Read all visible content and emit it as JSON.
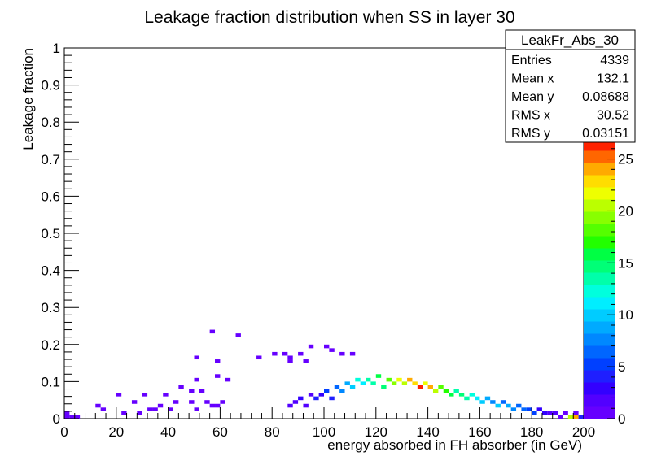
{
  "chart_data": {
    "type": "heatmap",
    "title": "Leakage fraction distribution when SS in layer 30",
    "xlabel": "energy absorbed in FH absorber (in GeV)",
    "ylabel": "Leakage fraction",
    "xlim": [
      0,
      200
    ],
    "ylim": [
      0,
      1
    ],
    "zlim": [
      0,
      27
    ],
    "x_ticks": [
      "0",
      "20",
      "40",
      "60",
      "80",
      "100",
      "120",
      "140",
      "160",
      "180",
      "200"
    ],
    "y_ticks": [
      "0",
      "0.1",
      "0.2",
      "0.3",
      "0.4",
      "0.5",
      "0.6",
      "0.7",
      "0.8",
      "0.9",
      "1"
    ],
    "z_ticks": [
      "0",
      "5",
      "10",
      "15",
      "20",
      "25"
    ],
    "bin_width_x": 2,
    "bin_width_y": 0.01,
    "stats_box": {
      "name": "LeakFr_Abs_30",
      "rows": [
        {
          "label": "Entries",
          "value": "4339"
        },
        {
          "label": "Mean x",
          "value": "132.1"
        },
        {
          "label": "Mean y",
          "value": "0.08688"
        },
        {
          "label": "RMS x",
          "value": "30.52"
        },
        {
          "label": "RMS y",
          "value": "0.03151"
        }
      ]
    },
    "palette": [
      "#6600ff",
      "#5200ff",
      "#3300ff",
      "#1f1fff",
      "#0040ff",
      "#0066ff",
      "#0088ff",
      "#00aaff",
      "#00ccff",
      "#00eeff",
      "#00ffdd",
      "#00ffaa",
      "#00ff77",
      "#00ff44",
      "#22ff00",
      "#55ff00",
      "#88ff00",
      "#bbff00",
      "#eeff00",
      "#ffdd00",
      "#ffaa00",
      "#ff6600",
      "#ff2200"
    ],
    "bins": [
      [
        1,
        0.005,
        1
      ],
      [
        3,
        0.005,
        1
      ],
      [
        5,
        0.005,
        1
      ],
      [
        1,
        0.015,
        1
      ],
      [
        23,
        0.015,
        1
      ],
      [
        29,
        0.015,
        1
      ],
      [
        15,
        0.025,
        1
      ],
      [
        33,
        0.025,
        1
      ],
      [
        35,
        0.025,
        1
      ],
      [
        41,
        0.025,
        1
      ],
      [
        51,
        0.025,
        1
      ],
      [
        13,
        0.035,
        1
      ],
      [
        37,
        0.035,
        1
      ],
      [
        57,
        0.035,
        1
      ],
      [
        59,
        0.035,
        1
      ],
      [
        27,
        0.045,
        1
      ],
      [
        43,
        0.045,
        1
      ],
      [
        49,
        0.045,
        1
      ],
      [
        55,
        0.045,
        1
      ],
      [
        61,
        0.045,
        1
      ],
      [
        21,
        0.065,
        1
      ],
      [
        31,
        0.065,
        1
      ],
      [
        39,
        0.065,
        1
      ],
      [
        49,
        0.075,
        1
      ],
      [
        45,
        0.085,
        1
      ],
      [
        53,
        0.075,
        1
      ],
      [
        51,
        0.105,
        1
      ],
      [
        59,
        0.115,
        1
      ],
      [
        63,
        0.105,
        1
      ],
      [
        51,
        0.165,
        1
      ],
      [
        59,
        0.155,
        1
      ],
      [
        75,
        0.165,
        1
      ],
      [
        81,
        0.175,
        1
      ],
      [
        85,
        0.175,
        1
      ],
      [
        87,
        0.165,
        1
      ],
      [
        91,
        0.175,
        1
      ],
      [
        95,
        0.195,
        1
      ],
      [
        101,
        0.195,
        1
      ],
      [
        103,
        0.185,
        1
      ],
      [
        93,
        0.155,
        1
      ],
      [
        87,
        0.155,
        1
      ],
      [
        57,
        0.235,
        1
      ],
      [
        67,
        0.225,
        1
      ],
      [
        107,
        0.175,
        1
      ],
      [
        111,
        0.175,
        1
      ],
      [
        185,
        0.015,
        3
      ],
      [
        187,
        0.015,
        2
      ],
      [
        189,
        0.015,
        2
      ],
      [
        191,
        0.005,
        1
      ],
      [
        193,
        0.015,
        1
      ],
      [
        195,
        0.005,
        20
      ],
      [
        197,
        0.005,
        24
      ],
      [
        199,
        0.005,
        4
      ],
      [
        197,
        0.015,
        1
      ],
      [
        87,
        0.035,
        2
      ],
      [
        89,
        0.045,
        2
      ],
      [
        91,
        0.055,
        3
      ],
      [
        93,
        0.035,
        2
      ],
      [
        95,
        0.065,
        2
      ],
      [
        97,
        0.055,
        4
      ],
      [
        99,
        0.065,
        3
      ],
      [
        101,
        0.075,
        5
      ],
      [
        103,
        0.055,
        4
      ],
      [
        105,
        0.085,
        6
      ],
      [
        107,
        0.075,
        8
      ],
      [
        109,
        0.095,
        9
      ],
      [
        111,
        0.085,
        10
      ],
      [
        113,
        0.105,
        12
      ],
      [
        115,
        0.095,
        11
      ],
      [
        117,
        0.105,
        14
      ],
      [
        119,
        0.095,
        13
      ],
      [
        121,
        0.115,
        16
      ],
      [
        123,
        0.085,
        15
      ],
      [
        125,
        0.105,
        18
      ],
      [
        127,
        0.095,
        19
      ],
      [
        129,
        0.105,
        22
      ],
      [
        131,
        0.095,
        21
      ],
      [
        133,
        0.105,
        24
      ],
      [
        135,
        0.095,
        23
      ],
      [
        137,
        0.085,
        26
      ],
      [
        139,
        0.095,
        22
      ],
      [
        141,
        0.085,
        24
      ],
      [
        143,
        0.075,
        20
      ],
      [
        145,
        0.085,
        18
      ],
      [
        147,
        0.075,
        17
      ],
      [
        149,
        0.065,
        16
      ],
      [
        151,
        0.075,
        14
      ],
      [
        153,
        0.065,
        15
      ],
      [
        155,
        0.055,
        13
      ],
      [
        157,
        0.065,
        12
      ],
      [
        159,
        0.055,
        11
      ],
      [
        161,
        0.045,
        10
      ],
      [
        163,
        0.055,
        9
      ],
      [
        165,
        0.045,
        8
      ],
      [
        167,
        0.035,
        10
      ],
      [
        169,
        0.045,
        7
      ],
      [
        171,
        0.035,
        9
      ],
      [
        173,
        0.025,
        8
      ],
      [
        175,
        0.035,
        6
      ],
      [
        177,
        0.025,
        7
      ],
      [
        179,
        0.025,
        5
      ],
      [
        181,
        0.015,
        5
      ],
      [
        183,
        0.025,
        3
      ]
    ]
  }
}
